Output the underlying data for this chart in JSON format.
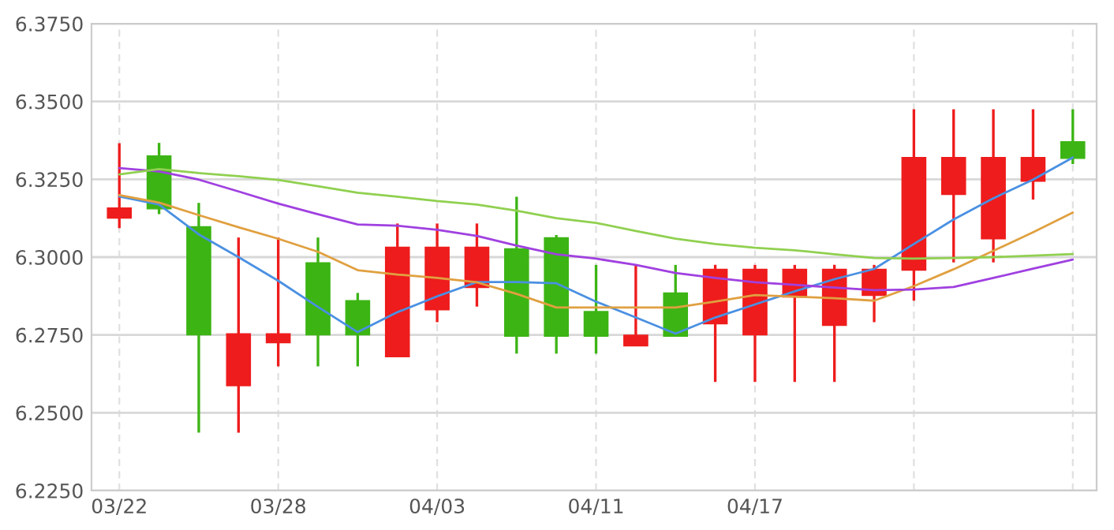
{
  "chart_data": {
    "type": "candlestick",
    "categories": [
      "03/22",
      null,
      null,
      null,
      "03/28",
      null,
      null,
      null,
      "04/03",
      null,
      null,
      null,
      "04/11",
      null,
      null,
      null,
      "04/17",
      null,
      null,
      null,
      null,
      null,
      null,
      null,
      null
    ],
    "ohlc": [
      [
        6.3125,
        6.3366,
        6.3093,
        6.3158
      ],
      [
        6.3325,
        6.3367,
        6.3138,
        6.3155
      ],
      [
        6.3098,
        6.3174,
        6.2436,
        6.275
      ],
      [
        6.2587,
        6.3063,
        6.2436,
        6.2754
      ],
      [
        6.2725,
        6.3063,
        6.2649,
        6.2754
      ],
      [
        6.2982,
        6.3063,
        6.2649,
        6.275
      ],
      [
        6.286,
        6.2885,
        6.2649,
        6.275
      ],
      [
        6.268,
        6.3108,
        6.268,
        6.3032
      ],
      [
        6.2831,
        6.3108,
        6.2791,
        6.3032
      ],
      [
        6.2902,
        6.3108,
        6.2841,
        6.3032
      ],
      [
        6.3027,
        6.3194,
        6.269,
        6.2746
      ],
      [
        6.3062,
        6.3071,
        6.269,
        6.2746
      ],
      [
        6.2825,
        6.2975,
        6.269,
        6.2746
      ],
      [
        6.2715,
        6.2975,
        6.2715,
        6.2749
      ],
      [
        6.2885,
        6.2975,
        6.2746,
        6.2746
      ],
      [
        6.2786,
        6.2975,
        6.2599,
        6.2961
      ],
      [
        6.275,
        6.2975,
        6.2599,
        6.2961
      ],
      [
        6.2872,
        6.2975,
        6.2599,
        6.2961
      ],
      [
        6.2781,
        6.2975,
        6.2599,
        6.2961
      ],
      [
        6.2877,
        6.2975,
        6.2791,
        6.2961
      ],
      [
        6.2958,
        6.3475,
        6.286,
        6.332
      ],
      [
        6.3201,
        6.3475,
        6.2983,
        6.332
      ],
      [
        6.3059,
        6.3475,
        6.2983,
        6.332
      ],
      [
        6.3244,
        6.3475,
        6.3185,
        6.332
      ],
      [
        6.3371,
        6.3475,
        6.3299,
        6.3317
      ]
    ],
    "colors": [
      "#ee1c1c",
      "#3cb414",
      "#3cb414",
      "#ee1c1c",
      "#ee1c1c",
      "#3cb414",
      "#3cb414",
      "#ee1c1c",
      "#ee1c1c",
      "#ee1c1c",
      "#3cb414",
      "#3cb414",
      "#3cb414",
      "#ee1c1c",
      "#3cb414",
      "#ee1c1c",
      "#ee1c1c",
      "#ee1c1c",
      "#ee1c1c",
      "#ee1c1c",
      "#ee1c1c",
      "#ee1c1c",
      "#ee1c1c",
      "#ee1c1c",
      "#3cb414"
    ],
    "series": [
      {
        "type": "line",
        "color": "#4a90e2",
        "values": [
          6.3195,
          6.3169,
          6.3073,
          6.3,
          6.2924,
          6.284,
          6.2759,
          6.2823,
          6.2874,
          6.292,
          6.292,
          6.2916,
          6.2857,
          6.2806,
          6.2754,
          6.2806,
          6.2848,
          6.289,
          6.2929,
          6.2962,
          6.3042,
          6.3121,
          6.3189,
          6.3249,
          6.332
        ]
      },
      {
        "type": "line",
        "color": "#e0a040",
        "values": [
          6.3199,
          6.3175,
          6.3135,
          6.3096,
          6.3059,
          6.3017,
          6.2958,
          6.2944,
          6.2933,
          6.2919,
          6.2882,
          6.2838,
          6.2838,
          6.2838,
          6.2838,
          6.2857,
          6.2878,
          6.2873,
          6.2868,
          6.286,
          6.2907,
          6.2961,
          6.302,
          6.308,
          6.3143
        ]
      },
      {
        "type": "line",
        "color": "#a040e0",
        "values": [
          6.3286,
          6.3275,
          6.3249,
          6.3211,
          6.3172,
          6.3138,
          6.3105,
          6.3101,
          6.3088,
          6.3068,
          6.3037,
          6.3009,
          6.2995,
          6.2975,
          6.2949,
          6.2933,
          6.2919,
          6.2911,
          6.2902,
          6.2894,
          6.2896,
          6.2904,
          6.2933,
          6.2963,
          6.2992
        ]
      },
      {
        "type": "line",
        "color": "#90d050",
        "values": [
          6.3266,
          6.3283,
          6.327,
          6.326,
          6.3248,
          6.3228,
          6.3207,
          6.3194,
          6.318,
          6.3169,
          6.3149,
          6.3125,
          6.311,
          6.3084,
          6.3059,
          6.3042,
          6.303,
          6.3022,
          6.3009,
          6.2997,
          6.2995,
          6.2997,
          6.3,
          6.3005,
          6.301
        ]
      }
    ],
    "ylim": [
      6.225,
      6.375
    ],
    "yticks": [
      {
        "value": 6.225,
        "label": "6.2250"
      },
      {
        "value": 6.25,
        "label": "6.2500"
      },
      {
        "value": 6.275,
        "label": "6.2750"
      },
      {
        "value": 6.3,
        "label": "6.3000"
      },
      {
        "value": 6.325,
        "label": "6.3250"
      },
      {
        "value": 6.35,
        "label": "6.3500"
      },
      {
        "value": 6.375,
        "label": "6.3750"
      }
    ],
    "grid": true
  }
}
